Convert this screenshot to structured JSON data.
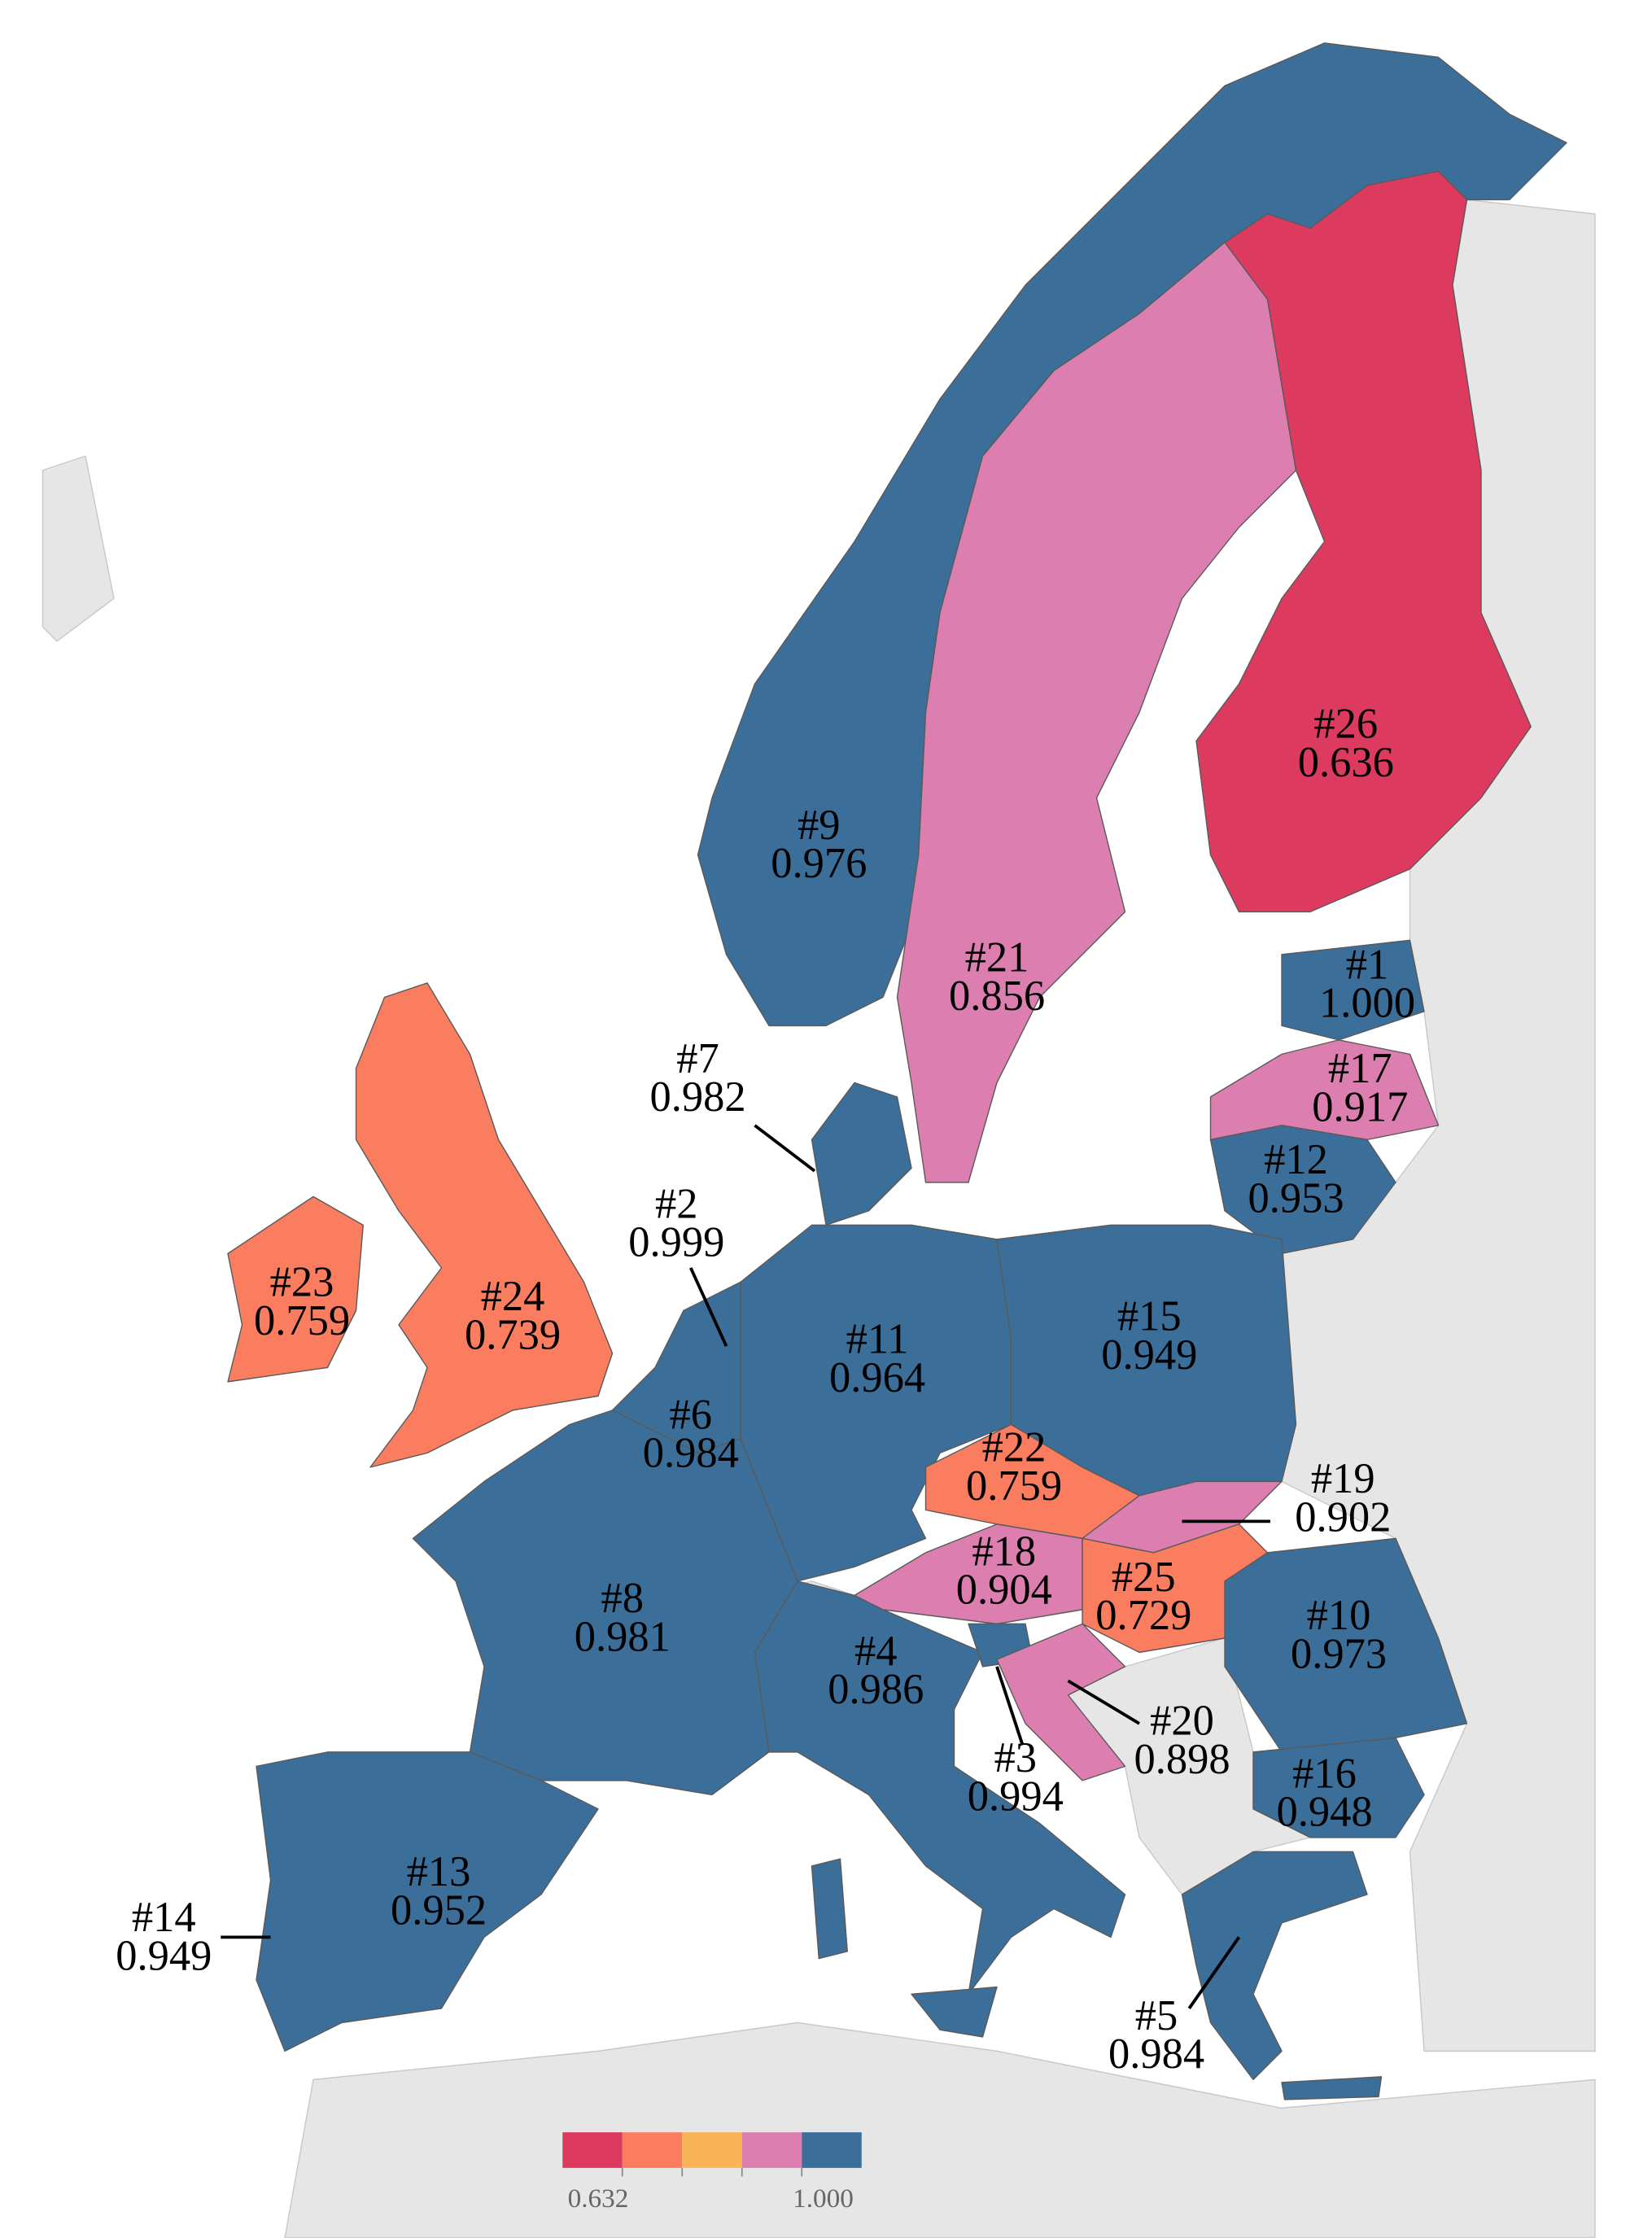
{
  "map": {
    "regions": [
      {
        "rank": "#1",
        "value": "1.000",
        "color": "#3b6e98"
      },
      {
        "rank": "#2",
        "value": "0.999",
        "color": "#3b6e98"
      },
      {
        "rank": "#3",
        "value": "0.994",
        "color": "#3b6e98"
      },
      {
        "rank": "#4",
        "value": "0.986",
        "color": "#3b6e98"
      },
      {
        "rank": "#5",
        "value": "0.984",
        "color": "#3b6e98"
      },
      {
        "rank": "#6",
        "value": "0.984",
        "color": "#3b6e98"
      },
      {
        "rank": "#7",
        "value": "0.982",
        "color": "#3b6e98"
      },
      {
        "rank": "#8",
        "value": "0.981",
        "color": "#3b6e98"
      },
      {
        "rank": "#9",
        "value": "0.976",
        "color": "#3b6e98"
      },
      {
        "rank": "#10",
        "value": "0.973",
        "color": "#3b6e98"
      },
      {
        "rank": "#11",
        "value": "0.964",
        "color": "#3b6e98"
      },
      {
        "rank": "#12",
        "value": "0.953",
        "color": "#3b6e98"
      },
      {
        "rank": "#13",
        "value": "0.952",
        "color": "#3b6e98"
      },
      {
        "rank": "#14",
        "value": "0.949",
        "color": "#3b6e98"
      },
      {
        "rank": "#15",
        "value": "0.949",
        "color": "#3b6e98"
      },
      {
        "rank": "#16",
        "value": "0.948",
        "color": "#3b6e98"
      },
      {
        "rank": "#17",
        "value": "0.917",
        "color": "#dc7fb0"
      },
      {
        "rank": "#18",
        "value": "0.904",
        "color": "#dc7fb0"
      },
      {
        "rank": "#19",
        "value": "0.902",
        "color": "#dc7fb0"
      },
      {
        "rank": "#20",
        "value": "0.898",
        "color": "#dc7fb0"
      },
      {
        "rank": "#21",
        "value": "0.856",
        "color": "#dc7fb0"
      },
      {
        "rank": "#22",
        "value": "0.759",
        "color": "#f97d5e"
      },
      {
        "rank": "#23",
        "value": "0.759",
        "color": "#f97d5e"
      },
      {
        "rank": "#24",
        "value": "0.739",
        "color": "#f97d5e"
      },
      {
        "rank": "#25",
        "value": "0.729",
        "color": "#f97d5e"
      },
      {
        "rank": "#26",
        "value": "0.636",
        "color": "#dc3b5f"
      }
    ],
    "legend": {
      "colors": [
        "#dc3b5f",
        "#f97d5e",
        "#fbb455",
        "#dc7fb0",
        "#3b6e98"
      ],
      "min_label": "0.632",
      "max_label": "1.000"
    }
  }
}
